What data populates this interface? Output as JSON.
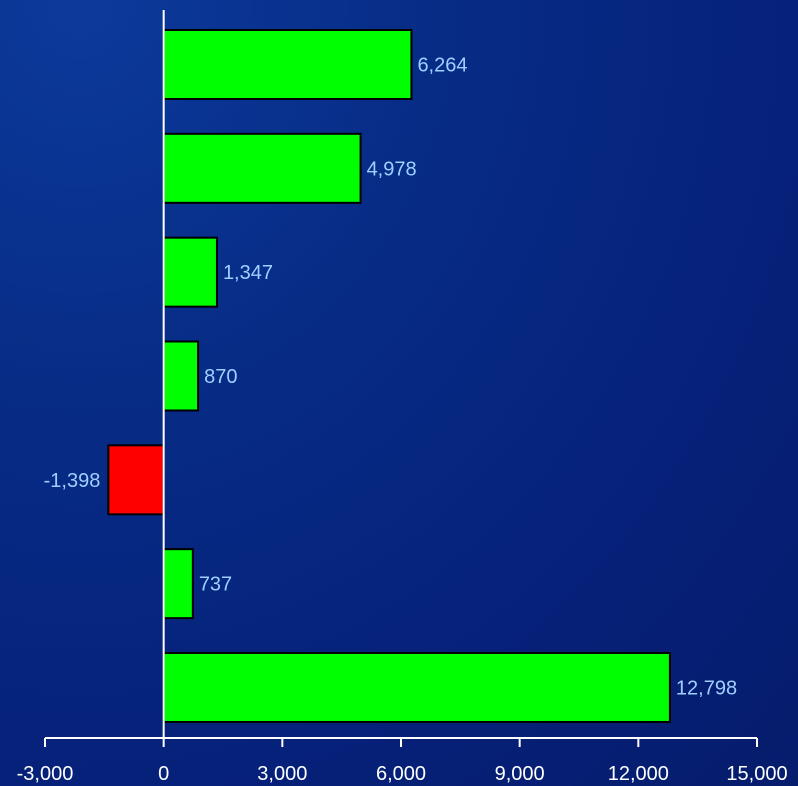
{
  "chart_data": {
    "type": "bar",
    "orientation": "horizontal",
    "categories": [
      "",
      "",
      "",
      "",
      "",
      "",
      ""
    ],
    "values": [
      6264,
      4978,
      1347,
      870,
      -1398,
      737,
      12798
    ],
    "value_labels": [
      "6,264",
      "4,978",
      "1,347",
      "870",
      "-1,398",
      "737",
      "12,798"
    ],
    "title": "",
    "xlabel": "",
    "ylabel": "",
    "xlim": [
      -3000,
      15000
    ],
    "xticks": [
      -3000,
      0,
      3000,
      6000,
      9000,
      12000,
      15000
    ],
    "xtick_labels": [
      "-3,000",
      "0",
      "3,000",
      "6,000",
      "9,000",
      "12,000",
      "15,000"
    ],
    "grid": false,
    "legend": "none",
    "colors": {
      "positive": "#00ff00",
      "negative": "#ff0000",
      "bar_outline": "#000000",
      "axis": "#ffffff",
      "value_label": "#9fd0ff",
      "tick_label": "#ffffff"
    }
  }
}
